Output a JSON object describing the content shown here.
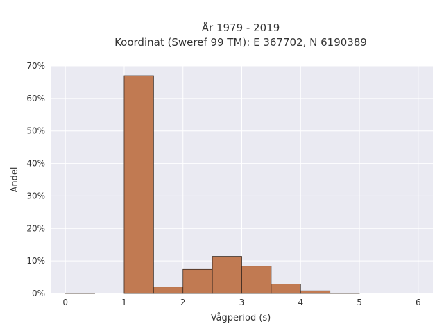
{
  "chart_data": {
    "type": "bar",
    "title_lines": [
      "År 1979 - 2019",
      "Koordinat (Sweref 99 TM): E 367702, N 6190389"
    ],
    "xlabel": "Vågperiod (s)",
    "ylabel": "Andel",
    "bin_edges": [
      0,
      0.5,
      1,
      1.5,
      2,
      2.5,
      3,
      3.5,
      4,
      4.5,
      5,
      5.5,
      6
    ],
    "values": [
      0.1,
      0,
      67.0,
      2.0,
      7.4,
      11.4,
      8.4,
      2.9,
      0.8,
      0.1,
      0,
      0
    ],
    "xlim": [
      -0.25,
      6.25
    ],
    "ylim": [
      0,
      70
    ],
    "x_ticks": [
      "0",
      "1",
      "2",
      "3",
      "4",
      "5",
      "6"
    ],
    "y_ticks": [
      "0%",
      "10%",
      "20%",
      "30%",
      "40%",
      "50%",
      "60%",
      "70%"
    ],
    "grid": true,
    "bar_color": "#c17a52",
    "bar_edge_color": "#3a2a20",
    "plot_bg": "#eaeaf2"
  }
}
